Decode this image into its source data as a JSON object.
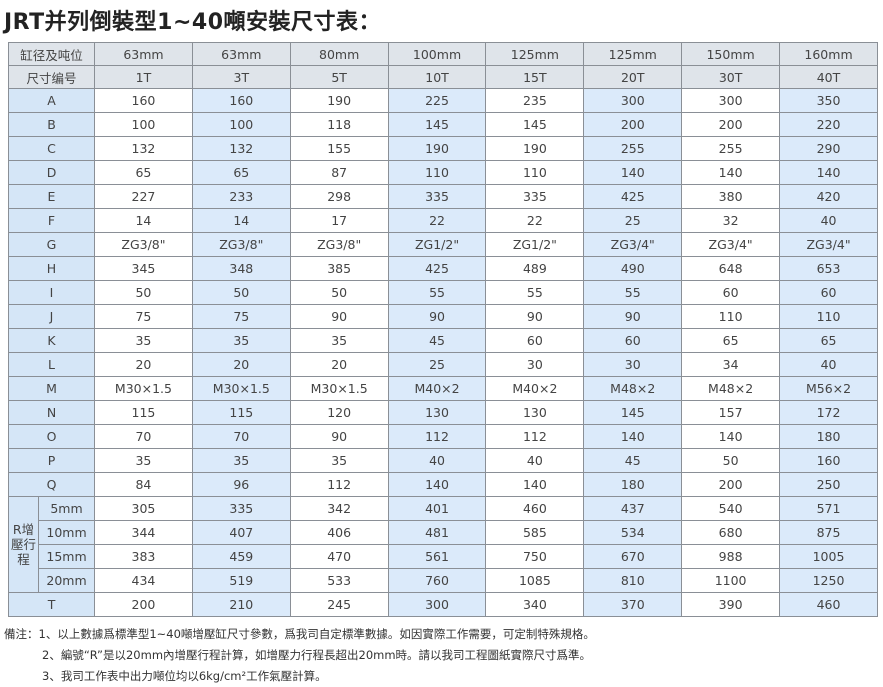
{
  "header": {
    "title": "JRT并列倒裝型1~40噸安裝尺寸表："
  },
  "table": {
    "header": [
      [
        "缸径及吨位",
        "63mm",
        "63mm",
        "80mm",
        "100mm",
        "125mm",
        "125mm",
        "150mm",
        "160mm"
      ],
      [
        "尺寸编号",
        "1T",
        "3T",
        "5T",
        "10T",
        "15T",
        "20T",
        "30T",
        "40T"
      ]
    ],
    "rows": [
      {
        "label": "A",
        "values": [
          160,
          160,
          190,
          225,
          235,
          300,
          300,
          350
        ]
      },
      {
        "label": "B",
        "values": [
          100,
          100,
          118,
          145,
          145,
          200,
          200,
          220
        ]
      },
      {
        "label": "C",
        "values": [
          132,
          132,
          155,
          190,
          190,
          255,
          255,
          290
        ]
      },
      {
        "label": "D",
        "values": [
          65,
          65,
          87,
          110,
          110,
          140,
          140,
          140
        ]
      },
      {
        "label": "E",
        "values": [
          227,
          233,
          298,
          335,
          335,
          425,
          380,
          420
        ]
      },
      {
        "label": "F",
        "values": [
          14,
          14,
          17,
          22,
          22,
          25,
          32,
          40
        ]
      },
      {
        "label": "G",
        "values": [
          "ZG3/8\"",
          "ZG3/8\"",
          "ZG3/8\"",
          "ZG1/2\"",
          "ZG1/2\"",
          "ZG3/4\"",
          "ZG3/4\"",
          "ZG3/4\""
        ]
      },
      {
        "label": "H",
        "values": [
          345,
          348,
          385,
          425,
          489,
          490,
          648,
          653
        ]
      },
      {
        "label": "I",
        "values": [
          50,
          50,
          50,
          55,
          55,
          55,
          60,
          60
        ]
      },
      {
        "label": "J",
        "values": [
          75,
          75,
          90,
          90,
          90,
          90,
          110,
          110
        ]
      },
      {
        "label": "K",
        "values": [
          35,
          35,
          35,
          45,
          60,
          60,
          65,
          65
        ]
      },
      {
        "label": "L",
        "values": [
          20,
          20,
          20,
          25,
          30,
          30,
          34,
          40
        ]
      },
      {
        "label": "M",
        "values": [
          "M30×1.5",
          "M30×1.5",
          "M30×1.5",
          "M40×2",
          "M40×2",
          "M48×2",
          "M48×2",
          "M56×2"
        ]
      },
      {
        "label": "N",
        "values": [
          115,
          115,
          120,
          130,
          130,
          145,
          157,
          172
        ]
      },
      {
        "label": "O",
        "values": [
          70,
          70,
          90,
          112,
          112,
          140,
          140,
          180
        ]
      },
      {
        "label": "P",
        "values": [
          35,
          35,
          35,
          40,
          40,
          45,
          50,
          160
        ]
      },
      {
        "label": "Q",
        "values": [
          84,
          96,
          112,
          140,
          140,
          180,
          200,
          250
        ]
      }
    ],
    "stroke_group": {
      "label": "R增壓行程",
      "rows": [
        {
          "label": "5mm",
          "values": [
            305,
            335,
            342,
            401,
            460,
            437,
            540,
            571
          ]
        },
        {
          "label": "10mm",
          "values": [
            344,
            407,
            406,
            481,
            585,
            534,
            680,
            875
          ]
        },
        {
          "label": "15mm",
          "values": [
            383,
            459,
            470,
            561,
            750,
            670,
            988,
            1005
          ]
        },
        {
          "label": "20mm",
          "values": [
            434,
            519,
            533,
            760,
            1085,
            810,
            1100,
            1250
          ]
        }
      ]
    },
    "last_rows": [
      {
        "label": "T",
        "values": [
          200,
          210,
          245,
          300,
          340,
          370,
          390,
          460
        ]
      }
    ]
  },
  "notes": {
    "label": "備注：",
    "items": [
      "1、以上數據爲標準型1~40噸增壓缸尺寸參數，爲我司自定標準數據。如因實際工作需要，可定制特殊規格。",
      "2、編號“R”是以20mm內增壓行程計算，如增壓力行程長超出20mm時。請以我司工程圖紙實際尺寸爲準。",
      "3、我司工作表中出力噸位均以6kg/cm²工作氣壓計算。"
    ]
  }
}
